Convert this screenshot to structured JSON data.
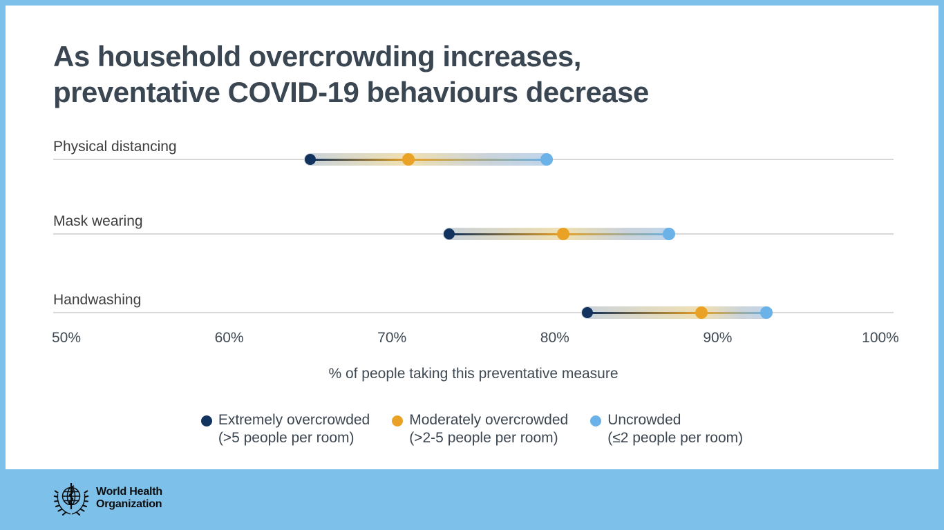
{
  "page": {
    "background_color": "#7DC0EA",
    "card_color": "#FFFFFF"
  },
  "title": {
    "line1": "As household overcrowding increases,",
    "line2": "preventative COVID-19 behaviours decrease"
  },
  "chart_data": {
    "type": "dumbbell",
    "title": "As household overcrowding increases, preventative COVID-19 behaviours decrease",
    "categories": [
      "Physical distancing",
      "Mask wearing",
      "Handwashing"
    ],
    "series": [
      {
        "name": "Extremely overcrowded",
        "qualifier": "(>5 people per room)",
        "color": "#11335D",
        "values": [
          65,
          73.5,
          82
        ]
      },
      {
        "name": "Moderately overcrowded",
        "qualifier": "(>2-5 people per room)",
        "color": "#E9A226",
        "values": [
          71,
          80.5,
          89
        ]
      },
      {
        "name": "Uncrowded",
        "qualifier": "(≤2 people per room)",
        "color": "#6AB2E7",
        "values": [
          79.5,
          87,
          93
        ]
      }
    ],
    "xlabel": "% of people taking this preventative measure",
    "x_ticks": [
      "50%",
      "60%",
      "70%",
      "80%",
      "90%",
      "100%"
    ],
    "xlim": [
      50,
      100
    ],
    "grid": "horizontal row baselines only",
    "legend_position": "bottom-center"
  },
  "footer": {
    "logo": {
      "icon": "who-emblem-icon",
      "line1": "World Health",
      "line2": "Organization"
    }
  },
  "colors": {
    "gridline": "#D8D8D8",
    "title_text": "#3A4651",
    "axis_text": "#3E4953"
  }
}
